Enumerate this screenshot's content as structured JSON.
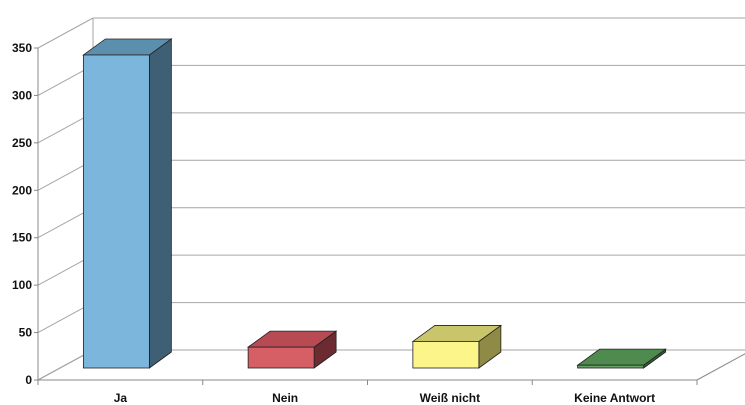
{
  "chart_data": {
    "type": "bar",
    "categories": [
      "Ja",
      "Nein",
      "Weiß nicht",
      "Keine Antwort"
    ],
    "values": [
      330,
      22,
      28,
      3
    ],
    "ylim": [
      0,
      350
    ],
    "yticks": [
      0,
      50,
      100,
      150,
      200,
      250,
      300,
      350
    ],
    "grid": true,
    "legend": "none",
    "colors": {
      "front": [
        "#7db6dc",
        "#d65f66",
        "#fbf58a",
        "#63a262"
      ],
      "side": [
        "#3f5f75",
        "#6b2b31",
        "#8f8a45",
        "#345b35"
      ],
      "top": [
        "#5c8fae",
        "#b84a53",
        "#c9c56a",
        "#4f8a4f"
      ],
      "grid": "#a6a6a6",
      "axis": "#888888"
    }
  }
}
